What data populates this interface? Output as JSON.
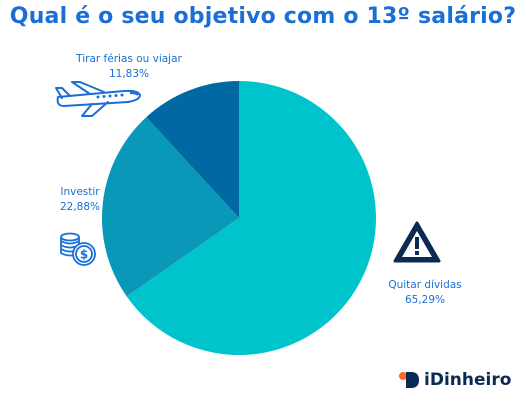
{
  "title": "Qual é o seu objetivo com o 13º salário?",
  "chart_data": {
    "type": "pie",
    "slices": [
      {
        "label": "Quitar dívidas",
        "value": 65.29,
        "display": "65,29%",
        "color": "#00c4cc"
      },
      {
        "label": "Investir",
        "value": 22.88,
        "display": "22,88%",
        "color": "#0a98b8"
      },
      {
        "label": "Tirar férias ou viajar",
        "value": 11.83,
        "display": "11,83%",
        "color": "#0069a4"
      }
    ]
  },
  "icons": {
    "travel": "airplane-icon",
    "invest": "coins-icon",
    "debt": "warning-icon"
  },
  "brand": {
    "name": "iDinheiro",
    "color": "#0b2a52"
  }
}
